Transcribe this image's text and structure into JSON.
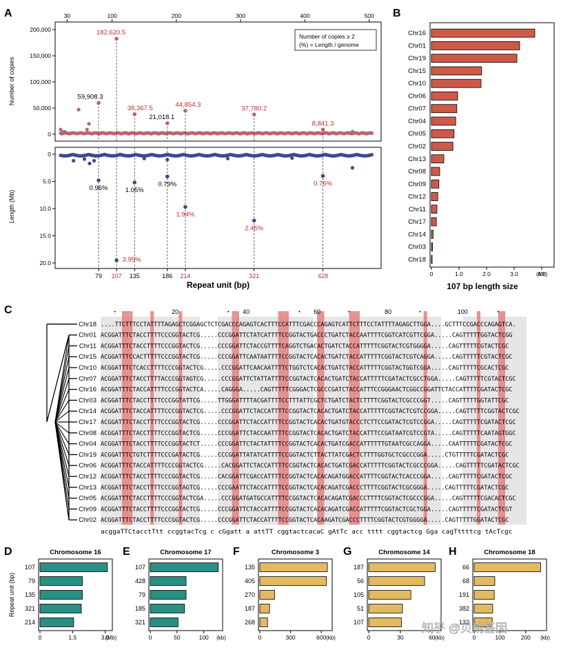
{
  "panel_letters": {
    "a": "A",
    "b": "B",
    "c": "C",
    "d": "D",
    "e": "E",
    "f": "F",
    "g": "G",
    "h": "H"
  },
  "watermark": "知乎 @贝纳基因",
  "colors": {
    "red_text": "#c8282d",
    "copies_dot": "#b9646c",
    "length_dot": "#3c4b8c",
    "bar_red": "#cd5a48",
    "bar_teal": "#2a8f85",
    "bar_gold": "#e3b962",
    "highlight_red": "#e57f7f",
    "highlight_grey": "#e6e6e6"
  },
  "chart_data": [
    {
      "id": "A-top",
      "type": "scatter",
      "ylabel": "Number of copies",
      "xlim": [
        20,
        510
      ],
      "ylim": [
        0,
        210000
      ],
      "top_ticks": [
        "30",
        "100",
        "200",
        "300",
        "400",
        "500"
      ],
      "top_tick_values": [
        30,
        100,
        200,
        300,
        400,
        500
      ],
      "yticks": [
        "200,000",
        "150,000",
        "100,000",
        "50,000",
        "0"
      ],
      "ytick_values": [
        200000,
        150000,
        100000,
        50000,
        0
      ],
      "legend": [
        "Number of copies ≥ 2",
        "(%) = Length / genome"
      ],
      "extra_points": [
        {
          "x": 20,
          "y": 9000
        },
        {
          "x": 23,
          "y": 4000
        },
        {
          "x": 26,
          "y": 5000
        },
        {
          "x": 48,
          "y": 47000
        },
        {
          "x": 64,
          "y": 20000
        },
        {
          "x": 61,
          "y": 9000
        },
        {
          "x": 474,
          "y": 5000
        }
      ],
      "highlighted": [
        {
          "x": 79,
          "y": 59908.3,
          "label": "59,908.3",
          "red": false
        },
        {
          "x": 107,
          "y": 182620.5,
          "label": "182,620.5",
          "red": true
        },
        {
          "x": 135,
          "y": 38367.5,
          "label": "38,367.5",
          "red": true
        },
        {
          "x": 186,
          "y": 21018.1,
          "label": "21,018.1",
          "red": false
        },
        {
          "x": 214,
          "y": 44854.3,
          "label": "44,854.3",
          "red": true
        },
        {
          "x": 321,
          "y": 37780.2,
          "label": "37,780.2",
          "red": true
        },
        {
          "x": 428,
          "y": 8841.3,
          "label": "8,841.3",
          "red": true
        }
      ]
    },
    {
      "id": "A-bottom",
      "type": "scatter",
      "ylabel": "Length (Mb)",
      "xlabel": "Repeat unit (bp)",
      "xlim": [
        20,
        510
      ],
      "ylim": [
        0,
        20.5
      ],
      "yticks": [
        "0",
        "5.0",
        "10.0",
        "15.0",
        "20.0"
      ],
      "ytick_values": [
        0,
        5,
        10,
        15,
        20
      ],
      "xticks": [
        {
          "label": "79",
          "value": 79,
          "red": false
        },
        {
          "label": "107",
          "value": 107,
          "red": true
        },
        {
          "label": "135",
          "value": 135,
          "red": false
        },
        {
          "label": "186",
          "value": 186,
          "red": false
        },
        {
          "label": "214",
          "value": 214,
          "red": true
        },
        {
          "label": "321",
          "value": 321,
          "red": true
        },
        {
          "label": "428",
          "value": 428,
          "red": true
        }
      ],
      "extra_points": [
        {
          "x": 40,
          "y": 1.2
        },
        {
          "x": 57,
          "y": 0.9
        },
        {
          "x": 65,
          "y": 1.7
        },
        {
          "x": 72,
          "y": 1.2
        },
        {
          "x": 150,
          "y": 0.8
        },
        {
          "x": 186,
          "y": 1.0
        },
        {
          "x": 280,
          "y": 0.8
        },
        {
          "x": 380,
          "y": 0.7
        },
        {
          "x": 474,
          "y": 2.5
        }
      ],
      "highlighted": [
        {
          "x": 79,
          "y": 4.8,
          "label": "0.96%",
          "red": false
        },
        {
          "x": 107,
          "y": 19.5,
          "label": "3.95%",
          "red": true
        },
        {
          "x": 135,
          "y": 5.2,
          "label": "1.05%",
          "red": false
        },
        {
          "x": 186,
          "y": 4.1,
          "label": "0.79%",
          "red": false
        },
        {
          "x": 214,
          "y": 9.7,
          "label": "1.94%",
          "red": true
        },
        {
          "x": 321,
          "y": 12.2,
          "label": "2.45%",
          "red": true
        },
        {
          "x": 428,
          "y": 4.0,
          "label": "0.76%",
          "red": true
        }
      ]
    },
    {
      "id": "B",
      "type": "bar",
      "orientation": "horizontal",
      "title": "",
      "xlabel": "107 bp length size",
      "unit": "(Mb)",
      "xlim": [
        0,
        4.4
      ],
      "xticks": [
        "0",
        "1.0",
        "2.0",
        "3.0",
        "4.0"
      ],
      "xtick_values": [
        0,
        1,
        2,
        3,
        4
      ],
      "categories": [
        "Chr16",
        "Chr01",
        "Chr19",
        "Chr15",
        "Chr10",
        "Chr06",
        "Chr07",
        "Chr04",
        "Chr05",
        "Chr02",
        "Chr13",
        "Chr08",
        "Chr09",
        "Chr12",
        "Chr11",
        "Chr17",
        "Chr14",
        "Chr03",
        "Chr18"
      ],
      "values": [
        3.75,
        3.2,
        3.1,
        1.82,
        1.8,
        0.95,
        0.92,
        0.88,
        0.82,
        0.78,
        0.45,
        0.3,
        0.27,
        0.23,
        0.2,
        0.18,
        0.06,
        0.04,
        0.02
      ]
    },
    {
      "id": "D",
      "type": "bar",
      "orientation": "horizontal",
      "title": "Chromosome 16",
      "ylabel": "Repeat unit (bp)",
      "unit": "(Mb)",
      "xlim": [
        0,
        3.2
      ],
      "xticks": [
        "0",
        "1.5",
        "3.0"
      ],
      "xtick_values": [
        0,
        1.5,
        3.0
      ],
      "categories": [
        "107",
        "79",
        "135",
        "321",
        "214"
      ],
      "values": [
        3.1,
        1.95,
        1.95,
        1.9,
        1.55
      ]
    },
    {
      "id": "E",
      "type": "bar",
      "orientation": "horizontal",
      "title": "Chromosome 17",
      "unit": "(kb)",
      "xlim": [
        0,
        130
      ],
      "xticks": [
        "0",
        "50",
        "100"
      ],
      "xtick_values": [
        0,
        50,
        100
      ],
      "categories": [
        "107",
        "428",
        "79",
        "185",
        "321"
      ],
      "values": [
        127,
        67,
        67,
        64,
        52
      ]
    },
    {
      "id": "F",
      "type": "bar",
      "orientation": "horizontal",
      "title": "Chromosome 3",
      "unit": "(kb)",
      "xlim": [
        0,
        680
      ],
      "xticks": [
        "0",
        "300",
        "600"
      ],
      "xtick_values": [
        0,
        300,
        600
      ],
      "categories": [
        "135",
        "405",
        "270",
        "187",
        "268"
      ],
      "values": [
        660,
        650,
        145,
        95,
        75
      ]
    },
    {
      "id": "G",
      "type": "bar",
      "orientation": "horizontal",
      "title": "Chromosome 14",
      "unit": "(kb)",
      "xlim": [
        0,
        66
      ],
      "xticks": [
        "0",
        "30",
        "60"
      ],
      "xtick_values": [
        0,
        30,
        60
      ],
      "categories": [
        "187",
        "56",
        "105",
        "51",
        "107"
      ],
      "values": [
        63,
        53,
        40,
        32,
        31
      ]
    },
    {
      "id": "H",
      "type": "bar",
      "orientation": "horizontal",
      "title": "Chromosome 18",
      "unit": "(kb)",
      "xlim": [
        0,
        270
      ],
      "xticks": [
        "0",
        "100",
        "200"
      ],
      "xtick_values": [
        0,
        100,
        200
      ],
      "categories": [
        "66",
        "68",
        "191",
        "382",
        "132"
      ],
      "values": [
        258,
        80,
        78,
        72,
        70
      ]
    }
  ],
  "alignment": {
    "ruler_numbers": [
      "20",
      "40",
      "60",
      "80",
      "100"
    ],
    "rows": [
      {
        "name": "Chr18",
        "seq": "....TTCTTTCCTATTTTAGAGCTCGGAGCTCTCGACCCAGAGTCACTTTCCATTTCGACCCAGAGTCATTCTTTCCTATTTTAGAGCTTGGA....GCTTTCCGACCCAGAGTCA."
      },
      {
        "name": "Chr01",
        "seq": "ACGGATTTCTACCTTTTCCCGGTACTCG.....CCCGGATTCTATCATTTTCCGGTACTGACCCTGATCTACCAATTTTCGGTCATCGTTCGGA.....CAGTTTTTGGTACTCGG"
      },
      {
        "name": "Chr11",
        "seq": "ACGGATTTCTACCTTTTCCCGGTACTCG.....CCCGGATTCTACCGTTTTCAGGTCTGACACTGATCTACCATTTTTCGGTACTCGTGGGGA.....CAGTTTTTCGTACTCGC"
      },
      {
        "name": "Chr15",
        "seq": "ACGGATTTCCACTTTTTCCCGGTACTCG.....CCCGGATTCAATAATTTTCCGGTACTCACACTGATCTACCATTTTTCGGTACTCGTCAGGA.....CAGTTTTTCGTACTCGC"
      },
      {
        "name": "Chr10",
        "seq": "ACGGATTTCTCACCTTTTCCCGGTACTCG.....CCCGGATTCAACAATTTTCTGGTCTCACACTGATCTACCATTTTTCGGTACTGGTCGGA.....CAGTTTTTCGCACTCGC"
      },
      {
        "name": "Chr07",
        "seq": "ACGGATTTCTACCTTTTACCCGGTAGTCG.....CCCGGATTCTATTATTTTCCGGTACTCACACTGATCTACCATTTTTCGATACTCGCCTGGA.....CAGTTTTTCGTACTCGC"
      },
      {
        "name": "Chr16",
        "seq": "ACGGATTTCTACCATTTTCCCGGTACTCA.....CAGGGA.....CAGTTTTTCGGGACTCGCCCGATCTACCATTTCCGGGAACTCGGCCGGATTCTACCATTTTCGATACTCGC"
      },
      {
        "name": "Chr03",
        "seq": "ACGGATTTCTACCTTTTCCCGGTATTCG.....TTGGGATTTTACGATTTTCCTTTATTCGCTCTGATCTACTCTTTTCGGTACTCGCCCGGT.....CAGTTTTTGGTATTCGC"
      },
      {
        "name": "Chr14",
        "seq": "ACGGATTTCTACCATTTTCCCGGTACTCG.....CCCGGATTCTACCATTTTCCGGTACTCACACTGATCTACCATTTTTCGGTACTCGTCCGGA.....CAGTTTTTCGGTACTCGC"
      },
      {
        "name": "Chr17",
        "seq": "ACGGATTTCTACCTTTTCCCGGTACTCG.....CCCGGATTCTACCATTTTCCGGTACTCACACTGATGTACCCTCTTCCGATACTCGTCCGGA.....CAGTTTTTCGATACTCGC"
      },
      {
        "name": "Chr08",
        "seq": "ACGGATTTCTACCTTTTCCCGGTACTCG.....CCCGGATTCTACCAATTTTCCGGTACTCACACTGATCTACCATTTCCGATAATCGTCCGTA.....CAGTTTTTCAATAGTGGC"
      },
      {
        "name": "Chr04",
        "seq": "ACGGATTTCTACCTTTTCCCGGTACTCT.....CCCGGATTCTACTATTTTCCGGTACTCACACTGATCGACCATTTTTTGTAATCGCCAGGA.....CAATTTTTCGATACTCGC"
      },
      {
        "name": "Chr19",
        "seq": "ACGGATTTCTGTCTTTTCCCGATACTCG.....CCCGGATTATATCATTTTCCGGTACTCTTACTTATCGACTCTTTTGGTGCTCGCCCGGA.....CTGTTTTTCGATACTCGC"
      },
      {
        "name": "Chr06",
        "seq": "ACGGATTTCTACCATTTTCCCGGTACTCG.....CACGGATTCTACCATTTTCCGGTACTCACACTGATCGACCATTTTTCGGTACTCGCCCGGA.....CAGTTTTTCGATACTCGC"
      },
      {
        "name": "Chr12",
        "seq": "ACGGATTTCTACCTTTTCCCGGTACTCG.....CACGGATTCGACCATTTTCCGGTACTCACACAGATGGACCATTTTCGGTACTCACCCGGA.....CAGTTTTTCGATACTCGC"
      },
      {
        "name": "Chr13",
        "seq": "ACGGATTTCTACCTTTTCCCGGTAGTCG.....CCCGAATTCTACCATTTTCCGGTACTCACACAGATCGACCCTTTTCGGTACTCGCGGGA.....CAGTTTTTCGATACTCGC"
      },
      {
        "name": "Chr05",
        "seq": "ACGGATTTCTACCTTTTCCCGGTACTCGA.....CCCGGATGATGCCATTTTCCGGTACTCACACAGATCGACCCTTTTCGGTACTCGCCCGGA.....CAGTTTTTCGACACTCGC"
      },
      {
        "name": "Chr09",
        "seq": "ACGGATTTCTACCTTTTCCCGGTACTCG.....CCCGGATTCTACCATTTTCCGGTACTCACACAGATCGACCATTTTTCGGTACTCGCTGGA.....CAGTTTTTCGATACTCGT"
      },
      {
        "name": "Chr02",
        "seq": "ACGGATTTCTACCTTTTCCCGGTACTCG.....CCCGGATTCTACCATTTTCCGGTACTCACAAGATCGACCCTTTTCGGTACTCGTGGGGA.....CAGTTTTTGGATACTCGC"
      }
    ],
    "consensus": "acggaTTCtacctTtt ccggtacTcg    c cGgatt  a  attTT cggtactcacaC gAtTc acc tttt cggtactcg   Gga     cagTttttcg tAcTcgc"
  }
}
